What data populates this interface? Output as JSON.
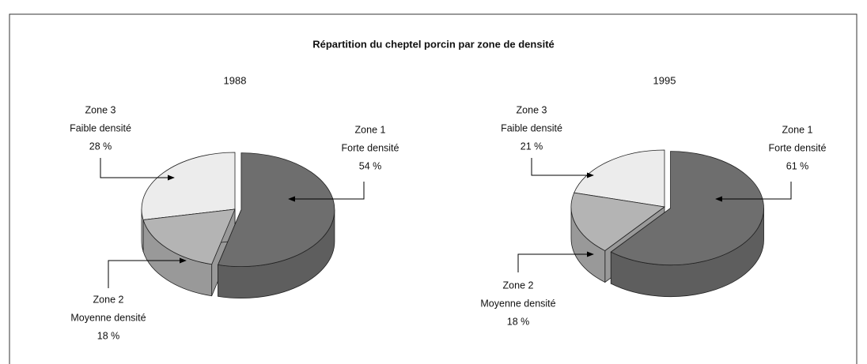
{
  "title": "Répartition du cheptel porcin par zone de densité",
  "chart_data": [
    {
      "type": "pie",
      "title": "1988",
      "categories": [
        "Zone 1",
        "Zone 2",
        "Zone 3"
      ],
      "subcategories": [
        "Forte densité",
        "Moyenne densité",
        "Faible densité"
      ],
      "values": [
        54,
        18,
        28
      ],
      "value_labels": [
        "54 %",
        "18 %",
        "28 %"
      ],
      "colors": [
        "#6e6e6e",
        "#b4b4b4",
        "#ececec"
      ]
    },
    {
      "type": "pie",
      "title": "1995",
      "categories": [
        "Zone 1",
        "Zone 2",
        "Zone 3"
      ],
      "subcategories": [
        "Forte densité",
        "Moyenne densité",
        "Faible densité"
      ],
      "values": [
        61,
        18,
        21
      ],
      "value_labels": [
        "61 %",
        "18 %",
        "21 %"
      ],
      "colors": [
        "#6e6e6e",
        "#b4b4b4",
        "#ececec"
      ]
    }
  ]
}
